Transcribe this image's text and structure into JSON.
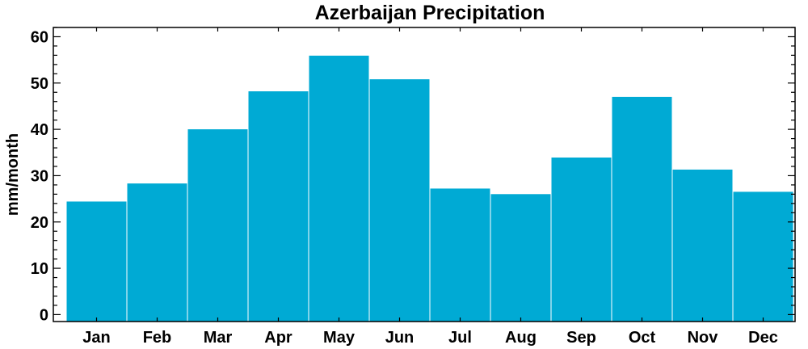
{
  "chart_data": {
    "type": "bar",
    "title": "Azerbaijan Precipitation",
    "xlabel": "",
    "ylabel": "mm/month",
    "categories": [
      "Jan",
      "Feb",
      "Mar",
      "Apr",
      "May",
      "Jun",
      "Jul",
      "Aug",
      "Sep",
      "Oct",
      "Nov",
      "Dec"
    ],
    "values": [
      24.5,
      28.4,
      40.1,
      48.3,
      56.0,
      50.9,
      27.3,
      26.1,
      34.0,
      47.1,
      31.4,
      26.6
    ],
    "ylim": [
      -1.5,
      62
    ],
    "yticks": [
      0,
      10,
      20,
      30,
      40,
      50,
      60
    ],
    "grid": false,
    "bar_color": "#00aad4"
  }
}
